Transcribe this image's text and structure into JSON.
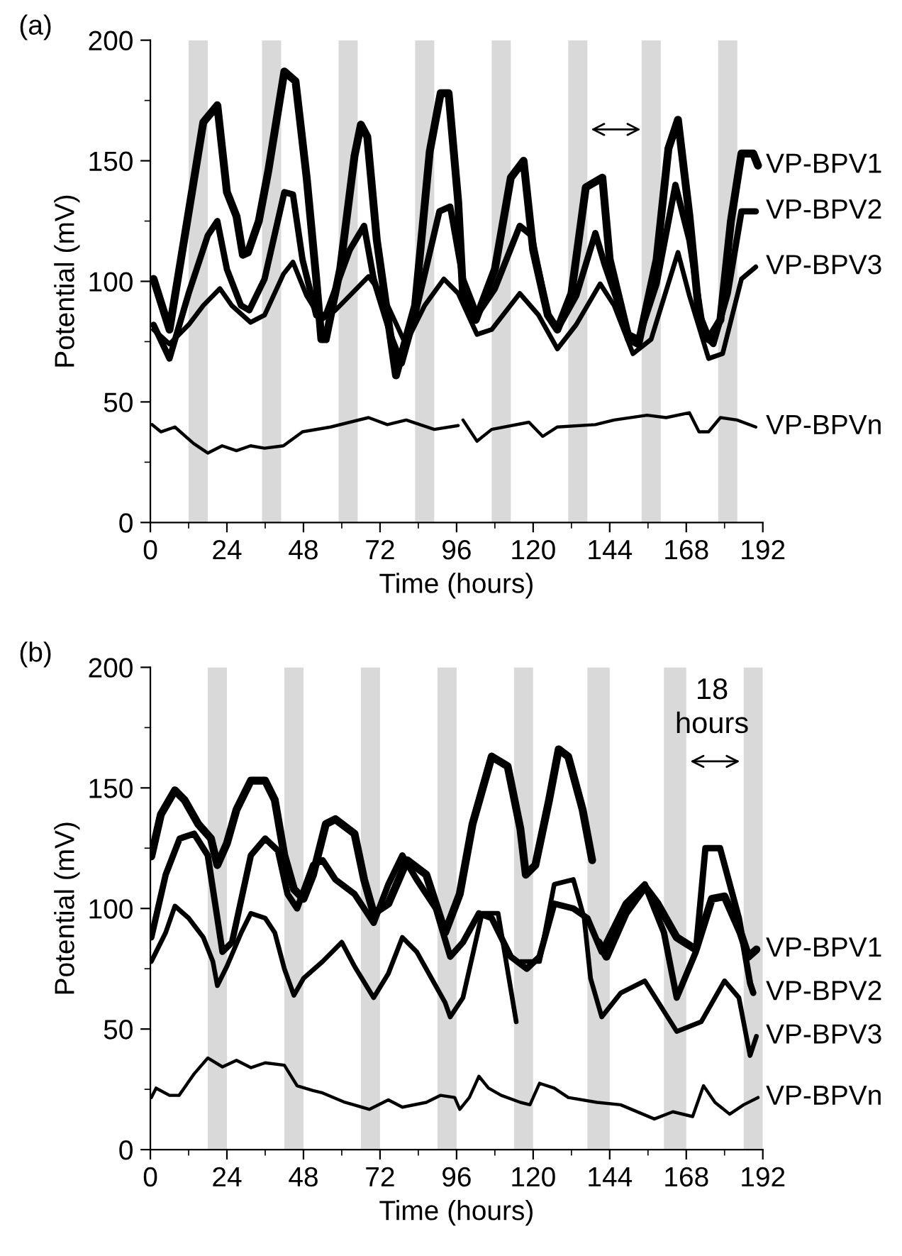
{
  "chart_data": [
    {
      "type": "line",
      "title": "(a)",
      "xlabel": "Time (hours)",
      "ylabel": "Potential (mV)",
      "xlim": [
        0,
        192
      ],
      "xticks": [
        0,
        24,
        48,
        72,
        96,
        120,
        144,
        168,
        192
      ],
      "ylim": [
        0,
        200
      ],
      "yticks": [
        0,
        50,
        100,
        150,
        200
      ],
      "grid": false,
      "legend": false,
      "marker": "none",
      "line_style": "solid",
      "bands": [
        {
          "axis": "x",
          "from": 12,
          "to": 18,
          "color": "#d9d9d9"
        },
        {
          "axis": "x",
          "from": 35,
          "to": 41,
          "color": "#d9d9d9"
        },
        {
          "axis": "x",
          "from": 59,
          "to": 65,
          "color": "#d9d9d9"
        },
        {
          "axis": "x",
          "from": 83,
          "to": 89,
          "color": "#d9d9d9"
        },
        {
          "axis": "x",
          "from": 107,
          "to": 113,
          "color": "#d9d9d9"
        },
        {
          "axis": "x",
          "from": 131,
          "to": 137,
          "color": "#d9d9d9"
        },
        {
          "axis": "x",
          "from": 154,
          "to": 160,
          "color": "#d9d9d9"
        },
        {
          "axis": "x",
          "from": 178,
          "to": 184,
          "color": "#d9d9d9"
        }
      ],
      "series": [
        {
          "name": "VP-BPV1",
          "color": "#000000",
          "x": [
            1,
            6,
            16.6,
            21,
            24,
            27,
            29,
            30.6,
            34,
            37,
            42,
            45.5,
            49,
            52,
            53.6,
            55,
            59.5,
            64,
            66,
            68,
            71,
            77,
            83,
            87.6,
            91,
            93.5,
            96.5,
            98,
            102,
            108,
            113,
            117,
            120,
            124.6,
            127.6,
            132,
            136.5,
            141.7,
            144,
            150,
            153,
            158.7,
            162.4,
            165.4,
            169,
            172,
            175,
            178.7,
            182,
            185.3,
            189,
            190.5
          ],
          "values": [
            101,
            80,
            166,
            173,
            137,
            127,
            111,
            112,
            125,
            146,
            187,
            183,
            143,
            101,
            76,
            76,
            105,
            152,
            165,
            160,
            117,
            61,
            90,
            154,
            178,
            178,
            133,
            95,
            84,
            105,
            143,
            150,
            113,
            86,
            80,
            95,
            139,
            143,
            109,
            76,
            74,
            109,
            155,
            167,
            127,
            86,
            76,
            84,
            125,
            153,
            153,
            148
          ]
        },
        {
          "name": "VP-BPV2",
          "color": "#000000",
          "x": [
            1,
            6,
            12,
            18,
            21,
            24,
            28.4,
            31,
            35.8,
            42,
            44.7,
            47.7,
            52,
            55,
            62.5,
            67,
            70,
            75.8,
            78.8,
            83,
            90.6,
            94,
            98,
            102.4,
            108,
            115.8,
            119.5,
            124.6,
            127.6,
            133.5,
            139.5,
            142.4,
            150,
            153,
            158.7,
            164.6,
            169,
            173.5,
            176.5,
            181,
            185.3,
            189.8
          ],
          "values": [
            82,
            68,
            95,
            119,
            125,
            105,
            90,
            88,
            101,
            137,
            136,
            109,
            86,
            86,
            113,
            123,
            101,
            76,
            66,
            86,
            129,
            131,
            101,
            86,
            97,
            123,
            119,
            86,
            80,
            94,
            120,
            107,
            78,
            76,
            99,
            140,
            117,
            78,
            74,
            95,
            129,
            129
          ]
        },
        {
          "name": "VP-BPV3",
          "color": "#000000",
          "x": [
            1,
            6,
            12,
            16.6,
            21.8,
            25.5,
            31.4,
            35.8,
            41.7,
            44.7,
            49,
            53.6,
            58,
            68.4,
            73,
            80,
            86,
            92,
            96.5,
            102.4,
            107,
            115.8,
            121.7,
            127.6,
            133.5,
            141,
            145.4,
            151.3,
            157,
            165.4,
            169,
            175,
            179.4,
            185.3,
            189.8
          ],
          "values": [
            80,
            74,
            82,
            90,
            97,
            90,
            83,
            86,
            103,
            108,
            94,
            84,
            88,
            102,
            94,
            74,
            90,
            101,
            95,
            78,
            80,
            95,
            86,
            72,
            82,
            99,
            90,
            70,
            76,
            112,
            94,
            68,
            70,
            101,
            106
          ]
        },
        {
          "name": "VP-BPVn",
          "color": "#000000",
          "x": [
            0.5,
            3.3,
            7.7,
            13.6,
            18,
            22.5,
            27,
            31.4,
            35.8,
            41.7,
            47.7,
            56.5,
            68.4,
            74.3,
            80.2,
            89,
            96.5,
            97,
            98,
            102.4,
            107,
            118.7,
            123,
            127.6,
            139.5,
            145.4,
            155.7,
            161.7,
            169,
            172,
            175,
            178.7,
            183.9,
            189.8
          ],
          "values": [
            40.6,
            37.6,
            39.6,
            32.7,
            28.8,
            31.8,
            29.8,
            31.8,
            30.8,
            31.8,
            37.6,
            39.6,
            43.5,
            40.6,
            42.5,
            38.6,
            40.2,
            null,
            42.5,
            33.7,
            38.6,
            41.6,
            35.7,
            39.6,
            40.6,
            42.5,
            44.5,
            43.5,
            45.5,
            37.6,
            37.6,
            43.5,
            42.5,
            39.6
          ]
        }
      ]
    },
    {
      "type": "line",
      "title": "(b)",
      "xlabel": "Time (hours)",
      "ylabel": "Potential (mV)",
      "xlim": [
        0,
        192
      ],
      "xticks": [
        0,
        24,
        48,
        72,
        96,
        120,
        144,
        168,
        192
      ],
      "ylim": [
        0,
        200
      ],
      "yticks": [
        0,
        50,
        100,
        150,
        200
      ],
      "grid": false,
      "legend": false,
      "marker": "none",
      "line_style": "solid",
      "bands": [
        {
          "axis": "x",
          "from": 18,
          "to": 24,
          "color": "#d9d9d9"
        },
        {
          "axis": "x",
          "from": 42,
          "to": 48,
          "color": "#d9d9d9"
        },
        {
          "axis": "x",
          "from": 66,
          "to": 72,
          "color": "#d9d9d9"
        },
        {
          "axis": "x",
          "from": 90,
          "to": 96,
          "color": "#d9d9d9"
        },
        {
          "axis": "x",
          "from": 114,
          "to": 120,
          "color": "#d9d9d9"
        },
        {
          "axis": "x",
          "from": 137,
          "to": 144,
          "color": "#d9d9d9"
        },
        {
          "axis": "x",
          "from": 161,
          "to": 168,
          "color": "#d9d9d9"
        },
        {
          "axis": "x",
          "from": 186,
          "to": 192,
          "color": "#d9d9d9"
        }
      ],
      "annotations": [
        "18\nhours"
      ],
      "series": [
        {
          "name": "VP-BPV1",
          "color": "#000000",
          "x": [
            0.3,
            3.3,
            7.7,
            10.7,
            15,
            19,
            21,
            24,
            27,
            31.5,
            36,
            39,
            42,
            45,
            48,
            51,
            55,
            58,
            64,
            67,
            70,
            74.6,
            80.5,
            86.5,
            92.4,
            97,
            101,
            107,
            112,
            116,
            117.7,
            120.7,
            125,
            128,
            131,
            135.5,
            138.5,
            139.5,
            140.5,
            143,
            149,
            155,
            159,
            165,
            171,
            176,
            180,
            185,
            187.5,
            190
          ],
          "values": [
            121.6,
            139,
            149,
            145,
            135,
            129,
            118,
            127,
            141,
            153,
            153,
            145,
            122,
            108,
            104,
            114,
            135,
            137,
            131,
            112,
            98,
            102,
            120,
            114,
            90,
            106,
            135,
            163,
            159,
            133,
            114,
            118,
            145,
            166,
            163,
            141,
            120,
            null,
            86,
            80,
            98,
            109,
            102,
            88,
            83,
            104,
            105,
            90,
            80,
            83
          ]
        },
        {
          "name": "VP-BPV2",
          "color": "#000000",
          "x": [
            0.3,
            4.8,
            9.2,
            13.7,
            18,
            21,
            22.6,
            25.6,
            31.5,
            36,
            40,
            43,
            46,
            51,
            54,
            58,
            64,
            70,
            74.6,
            79,
            83.5,
            89.5,
            94,
            98,
            103,
            107,
            113,
            118,
            122,
            126.6,
            132.6,
            137,
            141.5,
            149,
            155,
            161,
            165,
            171,
            174,
            178.6,
            184.5,
            188,
            189
          ],
          "values": [
            88,
            114,
            129,
            131,
            122,
            96,
            82,
            86,
            122,
            129,
            124,
            106,
            100,
            118,
            120,
            112,
            106,
            94,
            110,
            122,
            112,
            100,
            80,
            86,
            98,
            96,
            80,
            75,
            80,
            102,
            100,
            96,
            82,
            102,
            110,
            90,
            63,
            82,
            125,
            125,
            96,
            69,
            65
          ]
        },
        {
          "name": "VP-BPV3",
          "color": "#000000",
          "x": [
            0.3,
            4.8,
            7.7,
            12,
            16.6,
            19.6,
            21,
            24,
            28.5,
            31.5,
            36,
            39,
            42,
            45,
            48,
            54,
            60,
            64,
            70,
            74.6,
            79,
            83.5,
            92.4,
            94,
            98,
            104,
            109,
            114.7,
            115.3,
            116,
            122,
            126.6,
            132.6,
            136,
            138,
            141.5,
            147.5,
            155,
            165,
            172.7,
            180,
            184.5,
            188,
            190
          ],
          "values": [
            78,
            90,
            101,
            96,
            88,
            78,
            68,
            76,
            90,
            98,
            96,
            90,
            75,
            64,
            71,
            78,
            86,
            76,
            63,
            73,
            88,
            82,
            61,
            55,
            63,
            98,
            98,
            53,
            null,
            78,
            78,
            110,
            112,
            96,
            71,
            55,
            65,
            70,
            49,
            53,
            70,
            63,
            39,
            47
          ]
        },
        {
          "name": "VP-BPVn",
          "color": "#000000",
          "x": [
            0.3,
            1.8,
            6,
            9,
            13.7,
            18,
            22.6,
            27,
            31.5,
            36,
            42,
            46,
            51,
            54,
            61,
            68.7,
            74.6,
            79,
            86.5,
            91,
            95.4,
            97,
            100,
            103,
            106,
            110,
            116,
            119,
            122,
            126.6,
            131,
            140,
            147.4,
            158,
            163.8,
            170,
            173.4,
            177,
            181.6,
            186,
            190.5
          ],
          "values": [
            21.6,
            25.5,
            22.5,
            22.5,
            31.4,
            38,
            34.3,
            37,
            34,
            36,
            35,
            26.5,
            24.5,
            23.5,
            19.6,
            16.7,
            20.6,
            17.6,
            19.6,
            22.5,
            21.6,
            16.7,
            21.6,
            30.4,
            25.5,
            22.5,
            19.6,
            18.6,
            27.5,
            25.5,
            21.6,
            19.6,
            18.6,
            12.7,
            15.7,
            13.7,
            26.5,
            19.6,
            14.7,
            18.6,
            21.6
          ]
        }
      ]
    }
  ]
}
